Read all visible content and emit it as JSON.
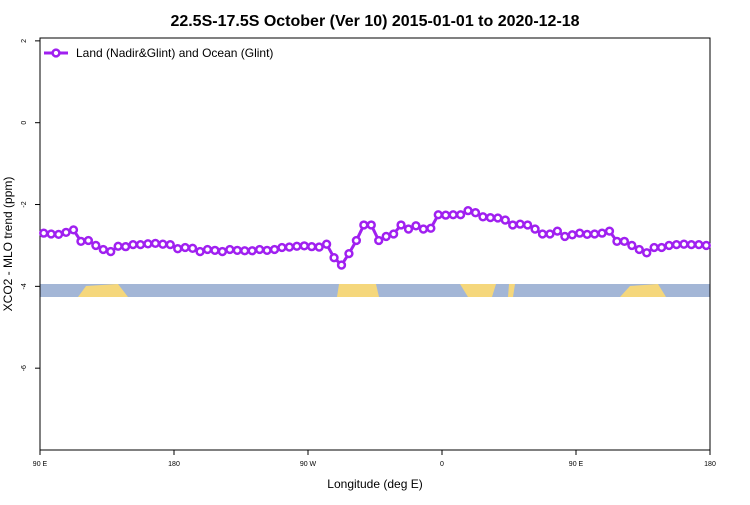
{
  "chart_data": {
    "type": "line",
    "title": "22.5S-17.5S October (Ver 10)   2015-01-01 to 2020-12-18",
    "x_label": "Longitude (deg E)",
    "y_label": "XCO2 - MLO trend (ppm)",
    "x": [
      92.5,
      97.5,
      102.5,
      107.5,
      112.5,
      117.5,
      122.5,
      127.5,
      132.5,
      137.5,
      142.5,
      147.5,
      152.5,
      157.5,
      162.5,
      167.5,
      172.5,
      177.5,
      182.5,
      187.5,
      192.5,
      197.5,
      202.5,
      207.5,
      212.5,
      217.5,
      222.5,
      227.5,
      232.5,
      237.5,
      242.5,
      247.5,
      252.5,
      257.5,
      262.5,
      267.5,
      272.5,
      277.5,
      282.5,
      287.5,
      292.5,
      297.5,
      302.5,
      307.5,
      312.5,
      317.5,
      322.5,
      327.5,
      332.5,
      337.5,
      342.5,
      347.5,
      352.5,
      357.5,
      362.5,
      367.5,
      372.5,
      377.5,
      382.5,
      387.5,
      392.5,
      397.5,
      402.5,
      407.5,
      412.5,
      417.5,
      422.5,
      427.5,
      432.5,
      437.5,
      442.5,
      447.5,
      452.5,
      457.5,
      462.5,
      467.5,
      472.5,
      477.5,
      482.5,
      487.5,
      492.5,
      497.5,
      502.5,
      507.5,
      512.5,
      517.5,
      522.5,
      527.5,
      532.5,
      537.5
    ],
    "series": [
      {
        "name": "Land (Nadir&Glint) and Ocean (Glint)",
        "color": "#a020f0",
        "values": [
          -2.7,
          -2.72,
          -2.73,
          -2.68,
          -2.62,
          -2.9,
          -2.88,
          -3.0,
          -3.1,
          -3.15,
          -3.02,
          -3.03,
          -2.98,
          -2.98,
          -2.96,
          -2.95,
          -2.97,
          -2.98,
          -3.08,
          -3.05,
          -3.07,
          -3.15,
          -3.1,
          -3.12,
          -3.15,
          -3.1,
          -3.12,
          -3.13,
          -3.13,
          -3.1,
          -3.12,
          -3.1,
          -3.05,
          -3.04,
          -3.02,
          -3.01,
          -3.03,
          -3.04,
          -2.97,
          -3.3,
          -3.48,
          -3.2,
          -2.88,
          -2.5,
          -2.5,
          -2.88,
          -2.78,
          -2.72,
          -2.5,
          -2.6,
          -2.52,
          -2.6,
          -2.58,
          -2.25,
          -2.26,
          -2.25,
          -2.25,
          -2.15,
          -2.2,
          -2.3,
          -2.32,
          -2.33,
          -2.38,
          -2.5,
          -2.48,
          -2.5,
          -2.6,
          -2.72,
          -2.72,
          -2.65,
          -2.78,
          -2.74,
          -2.7,
          -2.73,
          -2.72,
          -2.7,
          -2.65,
          -2.9,
          -2.9,
          -3.0,
          -3.1,
          -3.18,
          -3.05,
          -3.05,
          -3.0,
          -2.98,
          -2.97,
          -2.98,
          -2.98,
          -3.0
        ]
      }
    ],
    "xlim": [
      90,
      540
    ],
    "xticks": [
      {
        "value": 90,
        "label": "90 E"
      },
      180,
      {
        "value": 270,
        "label": "90 W"
      },
      {
        "value": 360,
        "label": "0"
      },
      {
        "value": 450,
        "label": "90 E"
      },
      {
        "value": 540,
        "label": "180"
      }
    ],
    "ylim": [
      -8,
      2.07
    ],
    "yticks": [
      -6,
      -4,
      -2,
      0,
      2
    ],
    "legend": "top-left"
  }
}
